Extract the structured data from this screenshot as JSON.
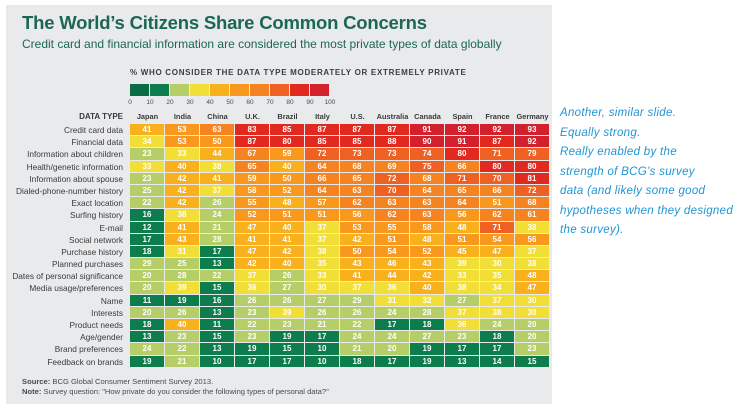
{
  "slide": {
    "title": "The World’s Citizens Share Common Concerns",
    "subtitle": "Credit card and financial information are considered the most private types of data globally"
  },
  "legend": {
    "title": "% WHO CONSIDER THE DATA TYPE MODERATELY OR EXTREMELY PRIVATE",
    "ticks": [
      "0",
      "10",
      "20",
      "30",
      "40",
      "50",
      "60",
      "70",
      "80",
      "90",
      "100"
    ],
    "colors": [
      "#0b6b45",
      "#0e7d4d",
      "#b6ce67",
      "#f1df38",
      "#f8b11d",
      "#f8981d",
      "#f5831f",
      "#ef6123",
      "#e2291f",
      "#d2202c"
    ]
  },
  "chart_data": {
    "type": "heatmap",
    "title": "The World’s Citizens Share Common Concerns",
    "subtitle": "Credit card and financial information are considered the most private types of data globally",
    "legend_title": "% WHO CONSIDER THE DATA TYPE MODERATELY OR EXTREMELY PRIVATE",
    "value_range": [
      0,
      100
    ],
    "legend_bin_edges": [
      0,
      10,
      20,
      30,
      40,
      50,
      60,
      70,
      80,
      90,
      100
    ],
    "row_header": "DATA TYPE",
    "columns": [
      "Japan",
      "India",
      "China",
      "U.K.",
      "Brazil",
      "Italy",
      "U.S.",
      "Australia",
      "Canada",
      "Spain",
      "France",
      "Germany"
    ],
    "rows": [
      {
        "label": "Credit card data",
        "values": [
          41,
          53,
          63,
          83,
          85,
          87,
          87,
          87,
          91,
          92,
          92,
          93
        ]
      },
      {
        "label": "Financial data",
        "values": [
          34,
          53,
          50,
          87,
          80,
          85,
          85,
          88,
          90,
          91,
          87,
          92
        ]
      },
      {
        "label": "Information about children",
        "values": [
          23,
          33,
          44,
          67,
          59,
          72,
          73,
          73,
          74,
          80,
          71,
          79
        ]
      },
      {
        "label": "Health/genetic information",
        "values": [
          33,
          40,
          38,
          65,
          40,
          64,
          68,
          69,
          75,
          66,
          80,
          80
        ]
      },
      {
        "label": "Information about spouse",
        "values": [
          23,
          42,
          41,
          59,
          50,
          66,
          65,
          72,
          68,
          71,
          70,
          81
        ]
      },
      {
        "label": "Dialed-phone-number history",
        "values": [
          25,
          42,
          37,
          58,
          52,
          64,
          63,
          70,
          64,
          65,
          66,
          72
        ]
      },
      {
        "label": "Exact location",
        "values": [
          22,
          42,
          26,
          55,
          48,
          57,
          62,
          63,
          63,
          64,
          51,
          68
        ]
      },
      {
        "label": "Surfing history",
        "values": [
          16,
          38,
          24,
          52,
          51,
          51,
          56,
          62,
          63,
          56,
          62,
          61
        ]
      },
      {
        "label": "E-mail",
        "values": [
          12,
          41,
          21,
          47,
          40,
          37,
          53,
          55,
          58,
          48,
          71,
          38
        ]
      },
      {
        "label": "Social network",
        "values": [
          17,
          43,
          28,
          41,
          41,
          37,
          42,
          51,
          48,
          51,
          54,
          56
        ]
      },
      {
        "label": "Purchase history",
        "values": [
          18,
          31,
          17,
          47,
          42,
          38,
          50,
          54,
          52,
          45,
          47,
          37
        ]
      },
      {
        "label": "Planned purchases",
        "values": [
          29,
          25,
          13,
          42,
          40,
          35,
          43,
          46,
          43,
          39,
          30,
          38
        ]
      },
      {
        "label": "Dates of personal significance",
        "values": [
          20,
          28,
          22,
          37,
          26,
          33,
          41,
          44,
          42,
          33,
          35,
          48
        ]
      },
      {
        "label": "Media usage/preferences",
        "values": [
          20,
          39,
          15,
          36,
          27,
          30,
          37,
          36,
          40,
          38,
          34,
          47
        ]
      },
      {
        "label": "Name",
        "values": [
          11,
          19,
          16,
          26,
          26,
          27,
          29,
          31,
          32,
          27,
          37,
          30
        ]
      },
      {
        "label": "Interests",
        "values": [
          20,
          26,
          13,
          23,
          39,
          26,
          26,
          24,
          28,
          37,
          38,
          30
        ]
      },
      {
        "label": "Product needs",
        "values": [
          18,
          40,
          11,
          22,
          23,
          21,
          22,
          17,
          18,
          36,
          24,
          20
        ]
      },
      {
        "label": "Age/gender",
        "values": [
          13,
          23,
          15,
          23,
          19,
          17,
          24,
          24,
          27,
          23,
          18,
          20
        ]
      },
      {
        "label": "Brand preferences",
        "values": [
          24,
          22,
          13,
          19,
          15,
          10,
          21,
          20,
          19,
          17,
          17,
          23
        ]
      },
      {
        "label": "Feedback on brands",
        "values": [
          19,
          21,
          10,
          17,
          17,
          10,
          18,
          17,
          19,
          13,
          14,
          15
        ]
      }
    ]
  },
  "footer": {
    "source_label": "Source:",
    "source_text": " BCG Global Consumer Sentiment Survey 2013.",
    "note_label": "Note:",
    "note_text": " Survey question: \"How private do you consider the following types of personal data?\""
  },
  "annotation": {
    "color": "#1e95d4",
    "lines": [
      "Another, similar slide.",
      "Equally strong.",
      "Really enabled by the",
      "strength of BCG’s survey",
      "data (and likely some good",
      "hypotheses when they designed",
      "the survey)."
    ]
  }
}
